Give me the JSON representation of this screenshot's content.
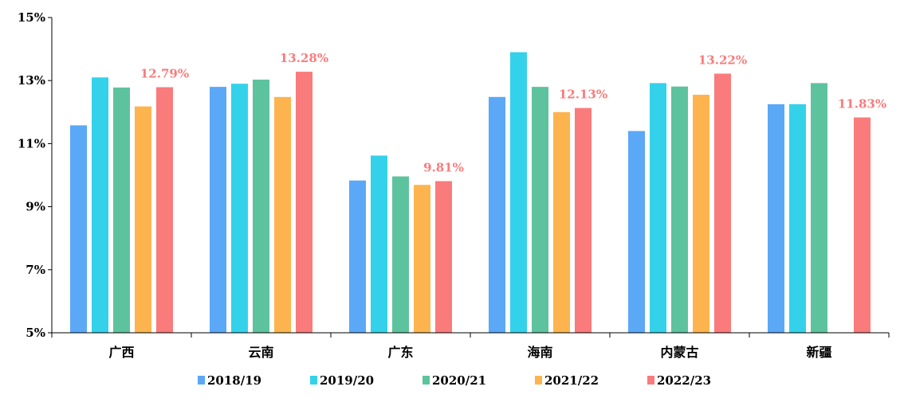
{
  "chart_data": {
    "type": "bar",
    "categories": [
      "广西",
      "云南",
      "广东",
      "海南",
      "内蒙古",
      "新疆"
    ],
    "series": [
      {
        "name": "2018/19",
        "color": "#5BA8F7",
        "values": [
          11.58,
          12.8,
          9.83,
          12.48,
          11.4,
          12.25
        ]
      },
      {
        "name": "2019/20",
        "color": "#33D2EA",
        "values": [
          13.1,
          12.9,
          10.62,
          13.9,
          12.92,
          12.25
        ]
      },
      {
        "name": "2020/21",
        "color": "#5DC39E",
        "values": [
          12.78,
          13.03,
          9.96,
          12.8,
          12.81,
          12.92
        ]
      },
      {
        "name": "2021/22",
        "color": "#FDB44E",
        "values": [
          12.18,
          12.48,
          9.69,
          12.0,
          12.55,
          null
        ]
      },
      {
        "name": "2022/23",
        "color": "#FA7B7B",
        "values": [
          12.79,
          13.28,
          9.81,
          12.13,
          13.22,
          11.83
        ]
      }
    ],
    "data_labels": {
      "series": "2022/23",
      "color": "#FA7B7B",
      "texts": [
        "12.79%",
        "13.28%",
        "9.81%",
        "12.13%",
        "13.22%",
        "11.83%"
      ]
    },
    "y_ticks": [
      {
        "value": 5,
        "label": "5%"
      },
      {
        "value": 7,
        "label": "7%"
      },
      {
        "value": 9,
        "label": "9%"
      },
      {
        "value": 11,
        "label": "11%"
      },
      {
        "value": 13,
        "label": "13%"
      },
      {
        "value": 15,
        "label": "15%"
      }
    ],
    "ylim": [
      5,
      15
    ],
    "grid": false,
    "legend_position": "bottom"
  }
}
